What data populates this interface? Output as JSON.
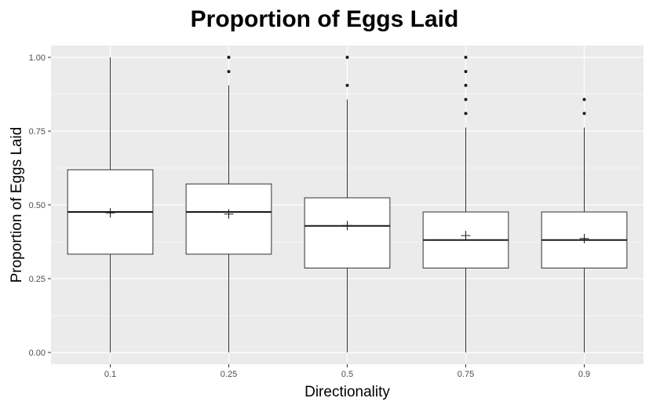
{
  "chart_data": {
    "type": "box",
    "title": "Proportion of Eggs Laid",
    "xlabel": "Directionality",
    "ylabel": "Proportion of Eggs Laid",
    "categories": [
      "0.1",
      "0.25",
      "0.5",
      "0.75",
      "0.9"
    ],
    "ylim": [
      -0.04,
      1.04
    ],
    "yticks": [
      0.0,
      0.25,
      0.5,
      0.75,
      1.0
    ],
    "ytick_labels": [
      "0.00",
      "0.25",
      "0.50",
      "0.75",
      "1.00"
    ],
    "grid": true,
    "legend": "none",
    "boxes": [
      {
        "category": "0.1",
        "whisker_low": 0.0,
        "q1": 0.333,
        "median": 0.476,
        "q3": 0.619,
        "whisker_high": 1.0,
        "mean": 0.473,
        "outliers": []
      },
      {
        "category": "0.25",
        "whisker_low": 0.0,
        "q1": 0.333,
        "median": 0.476,
        "q3": 0.571,
        "whisker_high": 0.905,
        "mean": 0.469,
        "outliers": [
          0.952,
          1.0
        ]
      },
      {
        "category": "0.5",
        "whisker_low": 0.0,
        "q1": 0.286,
        "median": 0.429,
        "q3": 0.524,
        "whisker_high": 0.857,
        "mean": 0.43,
        "outliers": [
          0.905,
          1.0
        ]
      },
      {
        "category": "0.75",
        "whisker_low": 0.0,
        "q1": 0.286,
        "median": 0.381,
        "q3": 0.476,
        "whisker_high": 0.762,
        "mean": 0.396,
        "outliers": [
          0.81,
          0.857,
          0.905,
          0.952,
          1.0
        ]
      },
      {
        "category": "0.9",
        "whisker_low": 0.0,
        "q1": 0.286,
        "median": 0.381,
        "q3": 0.476,
        "whisker_high": 0.762,
        "mean": 0.386,
        "outliers": [
          0.81,
          0.857
        ]
      }
    ],
    "colors": {
      "panel": "#ebebeb",
      "grid_major": "#ffffff",
      "box_fill": "#ffffff",
      "box_line": "#333333",
      "median_line": "#1a1a1a",
      "tick_text": "#4d4d4d"
    }
  }
}
